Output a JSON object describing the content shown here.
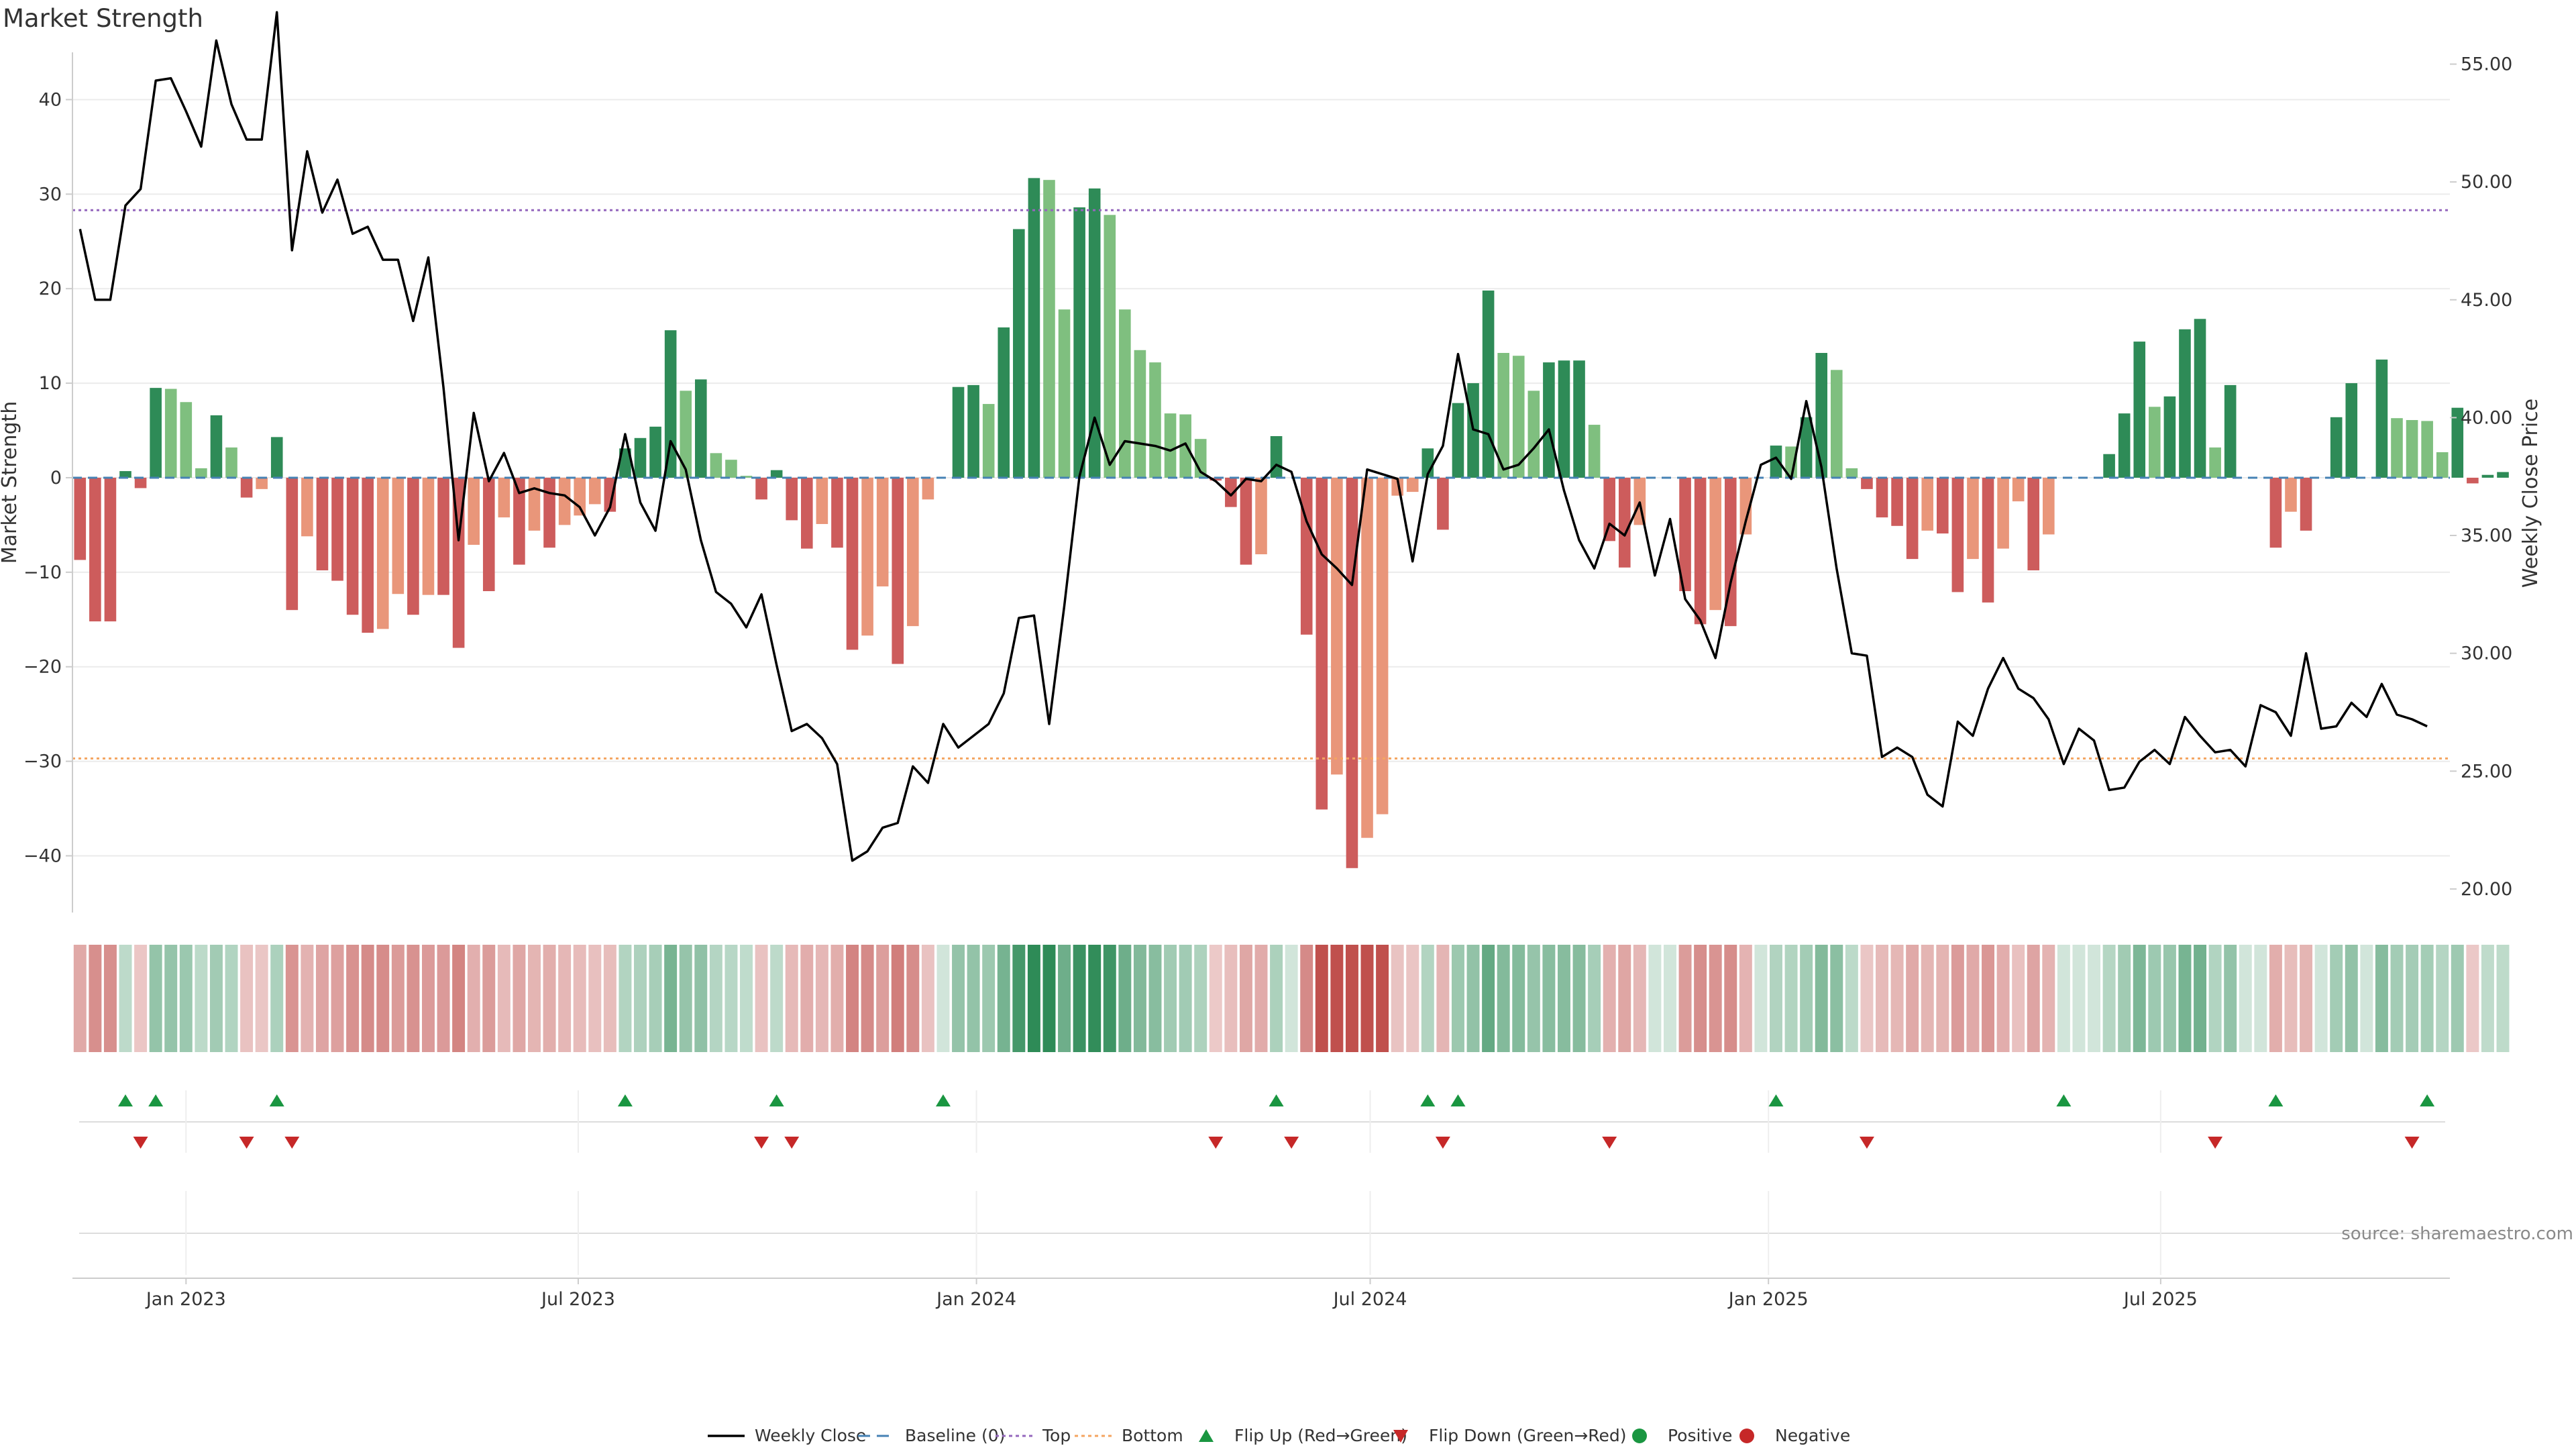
{
  "title": "Market Strength",
  "source": "source: sharemaestro.com",
  "colors": {
    "pos_strong": "#2e8b57",
    "pos_weak": "#7fbf7f",
    "neg_strong": "#cd5c5c",
    "neg_weak": "#e9967a",
    "line": "#000000",
    "baseline": "#4682b4",
    "top": "#9467bd",
    "bottom": "#f4a460",
    "flip_up": "#1a9641",
    "flip_down": "#c62828",
    "grid": "#ebebeb",
    "axis": "#cccccc"
  },
  "chart_data": {
    "type": "bar+line",
    "title": "Market Strength",
    "ylabel_left": "Market Strength",
    "ylabel_right": "Weekly Close Price",
    "ylim_left": [
      -46,
      45
    ],
    "ylim_right": [
      19.0,
      55.5
    ],
    "yticks_left": [
      40,
      30,
      20,
      10,
      0,
      -10,
      -20,
      -30,
      -40
    ],
    "yticks_left_labels": [
      "40",
      "30",
      "20",
      "10",
      "0",
      "−10",
      "−20",
      "−30",
      "−40"
    ],
    "yticks_right": [
      55,
      50,
      45,
      40,
      35,
      30,
      25,
      20
    ],
    "yticks_right_labels": [
      "55.00",
      "50.00",
      "45.00",
      "40.00",
      "35.00",
      "30.00",
      "25.00",
      "20.00"
    ],
    "x_range_weeks": [
      0,
      157
    ],
    "xticks": [
      {
        "label": "Jan 2023",
        "week": 7.0
      },
      {
        "label": "Jul 2023",
        "week": 32.9
      },
      {
        "label": "Jan 2024",
        "week": 59.2
      },
      {
        "label": "Jul 2024",
        "week": 85.2
      },
      {
        "label": "Jan 2025",
        "week": 111.5
      },
      {
        "label": "Jul 2025",
        "week": 137.4
      }
    ],
    "top_level": 28.3,
    "bottom_level": -29.7,
    "strength": [
      -8.7,
      -15.2,
      -15.2,
      0.7,
      -1.1,
      9.5,
      9.4,
      8.0,
      1.0,
      6.6,
      3.2,
      -2.1,
      -1.2,
      4.3,
      -14.0,
      -6.2,
      -9.8,
      -10.9,
      -14.5,
      -16.4,
      -16.0,
      -12.3,
      -14.5,
      -12.4,
      -12.4,
      -18.0,
      -7.1,
      -12.0,
      -4.2,
      -9.2,
      -5.6,
      -7.4,
      -5.0,
      -4.0,
      -2.8,
      -3.6,
      3.1,
      4.2,
      5.4,
      15.6,
      9.2,
      10.4,
      2.6,
      1.9,
      0.2,
      -2.3,
      0.8,
      -4.5,
      -7.5,
      -4.9,
      -7.4,
      -18.2,
      -16.7,
      -11.5,
      -19.7,
      -15.7,
      -2.3,
      0,
      9.6,
      9.8,
      7.8,
      15.9,
      26.3,
      31.7,
      31.5,
      17.8,
      28.6,
      30.6,
      27.8,
      17.8,
      13.5,
      12.2,
      6.8,
      6.7,
      4.1,
      -0.3,
      -3.1,
      -9.2,
      -8.1,
      4.4,
      0,
      -16.6,
      -35.1,
      -31.4,
      -41.3,
      -38.1,
      -35.6,
      -1.9,
      -1.5,
      3.1,
      -5.5,
      7.9,
      10.0,
      19.8,
      13.2,
      12.9,
      9.2,
      12.2,
      12.4,
      12.4,
      5.6,
      -6.7,
      -9.5,
      -5.0,
      0,
      0,
      -12.0,
      -15.5,
      -14.0,
      -15.7,
      -6.0,
      0,
      3.4,
      3.3,
      6.4,
      13.2,
      11.4,
      1.0,
      -1.2,
      -4.2,
      -5.1,
      -8.6,
      -5.6,
      -5.9,
      -12.1,
      -8.6,
      -13.2,
      -7.5,
      -2.5,
      -9.8,
      -6.0,
      0,
      0,
      0,
      2.5,
      6.8,
      14.4,
      7.5,
      8.6,
      15.7,
      16.8,
      3.2,
      9.8,
      0,
      0,
      -7.4,
      -3.6,
      -5.6,
      0,
      6.4,
      10.0,
      0,
      12.5,
      6.3,
      6.1,
      6.0,
      2.7,
      7.4,
      -0.6,
      0.3,
      0.6
    ],
    "weekly_close": [
      48.0,
      45.0,
      45.0,
      49.0,
      49.7,
      54.3,
      54.4,
      53.0,
      51.5,
      56.0,
      53.3,
      51.8,
      51.8,
      57.2,
      47.1,
      51.3,
      48.7,
      50.1,
      47.8,
      48.1,
      46.7,
      46.7,
      44.1,
      46.8,
      41.3,
      34.8,
      40.2,
      37.3,
      38.5,
      36.8,
      37.0,
      36.8,
      36.7,
      36.2,
      35.0,
      36.2,
      39.3,
      36.4,
      35.2,
      39.0,
      37.8,
      34.8,
      32.6,
      32.1,
      31.1,
      32.5,
      29.5,
      26.7,
      27.0,
      26.4,
      25.3,
      21.2,
      21.6,
      22.6,
      22.8,
      25.2,
      24.5,
      27.0,
      26.0,
      26.5,
      27.0,
      28.3,
      31.5,
      31.6,
      27.0,
      32.0,
      37.5,
      40.0,
      38.0,
      39.0,
      38.9,
      38.8,
      38.6,
      38.9,
      37.7,
      37.3,
      36.7,
      37.4,
      37.3,
      38.0,
      37.7,
      35.6,
      34.2,
      33.6,
      32.9,
      37.8,
      37.6,
      37.4,
      33.9,
      37.6,
      38.8,
      42.7,
      39.5,
      39.3,
      37.8,
      38.0,
      38.7,
      39.5,
      36.9,
      34.8,
      33.6,
      35.5,
      35.0,
      36.4,
      33.3,
      35.7,
      32.3,
      31.4,
      29.8,
      33.0,
      35.6,
      38.0,
      38.3,
      37.4,
      40.7,
      37.9,
      33.6,
      30.0,
      29.9,
      25.6,
      26.0,
      25.6,
      24.0,
      23.5,
      27.1,
      26.5,
      28.5,
      29.8,
      28.5,
      28.1,
      27.2,
      25.3,
      26.8,
      26.3,
      24.2,
      24.3,
      25.4,
      25.9,
      25.3,
      27.3,
      26.5,
      25.8,
      25.9,
      25.2,
      27.8,
      27.5,
      26.5,
      30.0,
      26.8,
      26.9,
      27.9,
      27.3,
      28.7,
      27.4,
      27.2,
      26.9
    ],
    "flip_up_weeks": [
      3,
      5,
      13,
      36,
      46,
      57,
      79,
      89,
      91,
      112,
      131,
      145,
      155
    ],
    "flip_down_weeks": [
      4,
      11,
      14,
      45,
      47,
      75,
      80,
      90,
      101,
      118,
      141,
      154
    ],
    "legend": [
      {
        "label": "Weekly Close",
        "kind": "line"
      },
      {
        "label": "Baseline (0)",
        "kind": "dash"
      },
      {
        "label": "Top",
        "kind": "dot"
      },
      {
        "label": "Bottom",
        "kind": "dot"
      },
      {
        "label": "Flip Up (Red→Green)",
        "kind": "up"
      },
      {
        "label": "Flip Down (Green→Red)",
        "kind": "down"
      },
      {
        "label": "Positive",
        "kind": "circle-pos"
      },
      {
        "label": "Negative",
        "kind": "circle-neg"
      }
    ]
  }
}
